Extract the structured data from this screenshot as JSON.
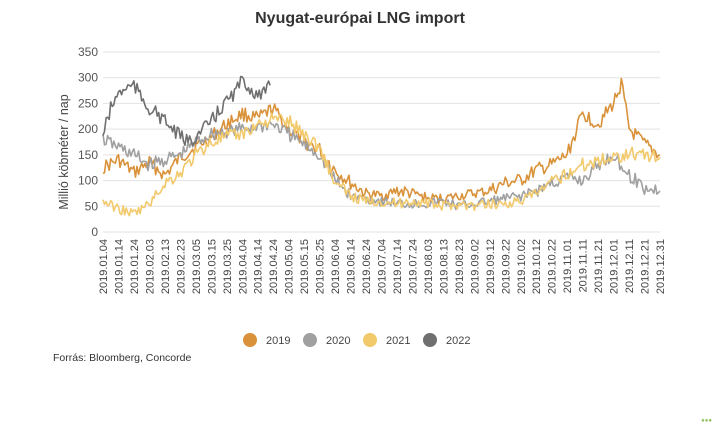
{
  "chart_data": {
    "type": "line",
    "title": "Nyugat-európai LNG import",
    "ylabel": "Millió köbméter / nap",
    "xlabel": "",
    "ylim": [
      0,
      350
    ],
    "yticks": [
      0,
      50,
      100,
      150,
      200,
      250,
      300,
      350
    ],
    "x_tick_labels": [
      "2019.01.04",
      "2019.01.14",
      "2019.01.24",
      "2019.02.03",
      "2019.02.13",
      "2019.02.23",
      "2019.03.05",
      "2019.03.15",
      "2019.03.25",
      "2019.04.04",
      "2019.04.14",
      "2019.04.24",
      "2019.05.04",
      "2019.05.15",
      "2019.05.25",
      "2019.06.04",
      "2019.06.14",
      "2019.06.24",
      "2019.07.04",
      "2019.07.14",
      "2019.07.24",
      "2019.08.03",
      "2019.08.13",
      "2019.08.23",
      "2019.09.02",
      "2019.09.12",
      "2019.09.22",
      "2019.10.02",
      "2019.10.12",
      "2019.10.22",
      "2019.11.01",
      "2019.11.11",
      "2019.11.21",
      "2019.12.01",
      "2019.12.11",
      "2019.12.21",
      "2019.12.31"
    ],
    "grid": "horizontal",
    "legend_position": "bottom",
    "series": [
      {
        "name": "2019",
        "color": "#D9923A",
        "x": [
          "2019.01.04",
          "2019.01.14",
          "2019.01.24",
          "2019.02.03",
          "2019.02.13",
          "2019.02.23",
          "2019.03.05",
          "2019.03.15",
          "2019.03.25",
          "2019.04.04",
          "2019.04.14",
          "2019.04.24",
          "2019.05.04",
          "2019.05.15",
          "2019.05.25",
          "2019.06.04",
          "2019.06.14",
          "2019.06.24",
          "2019.07.04",
          "2019.07.14",
          "2019.07.24",
          "2019.08.03",
          "2019.08.13",
          "2019.08.23",
          "2019.09.02",
          "2019.09.12",
          "2019.09.22",
          "2019.10.02",
          "2019.10.12",
          "2019.10.22",
          "2019.11.01",
          "2019.11.11",
          "2019.11.21",
          "2019.12.01",
          "2019.12.06",
          "2019.12.11",
          "2019.12.21",
          "2019.12.31"
        ],
        "values": [
          125,
          140,
          115,
          135,
          110,
          145,
          165,
          185,
          210,
          230,
          220,
          240,
          200,
          175,
          160,
          120,
          95,
          75,
          70,
          80,
          75,
          65,
          65,
          70,
          75,
          80,
          95,
          100,
          120,
          130,
          150,
          230,
          210,
          250,
          290,
          200,
          170,
          150
        ]
      },
      {
        "name": "2020",
        "color": "#A0A0A0",
        "x": [
          "2019.01.04",
          "2019.01.14",
          "2019.01.24",
          "2019.02.03",
          "2019.02.13",
          "2019.02.23",
          "2019.03.05",
          "2019.03.15",
          "2019.03.25",
          "2019.04.04",
          "2019.04.14",
          "2019.04.24",
          "2019.05.04",
          "2019.05.15",
          "2019.05.25",
          "2019.06.04",
          "2019.06.14",
          "2019.06.24",
          "2019.07.04",
          "2019.07.14",
          "2019.07.24",
          "2019.08.03",
          "2019.08.13",
          "2019.08.23",
          "2019.09.02",
          "2019.09.12",
          "2019.09.22",
          "2019.10.02",
          "2019.10.12",
          "2019.10.22",
          "2019.11.01",
          "2019.11.11",
          "2019.11.21",
          "2019.12.01",
          "2019.12.11",
          "2019.12.21",
          "2019.12.31"
        ],
        "values": [
          180,
          165,
          150,
          130,
          140,
          150,
          175,
          190,
          195,
          200,
          205,
          210,
          190,
          170,
          150,
          100,
          70,
          65,
          60,
          55,
          55,
          55,
          60,
          50,
          55,
          60,
          65,
          70,
          80,
          95,
          105,
          100,
          130,
          150,
          110,
          85,
          80
        ]
      },
      {
        "name": "2021",
        "color": "#F2C96B",
        "x": [
          "2019.01.04",
          "2019.01.14",
          "2019.01.24",
          "2019.02.03",
          "2019.02.13",
          "2019.02.23",
          "2019.03.05",
          "2019.03.15",
          "2019.03.25",
          "2019.04.04",
          "2019.04.14",
          "2019.04.24",
          "2019.05.04",
          "2019.05.15",
          "2019.05.25",
          "2019.06.04",
          "2019.06.14",
          "2019.06.24",
          "2019.07.04",
          "2019.07.14",
          "2019.07.24",
          "2019.08.03",
          "2019.08.13",
          "2019.08.23",
          "2019.09.02",
          "2019.09.12",
          "2019.09.22",
          "2019.10.02",
          "2019.10.12",
          "2019.10.22",
          "2019.11.01",
          "2019.11.11",
          "2019.11.21",
          "2019.12.01",
          "2019.12.11",
          "2019.12.21",
          "2019.12.31"
        ],
        "values": [
          60,
          45,
          35,
          55,
          95,
          115,
          150,
          175,
          185,
          190,
          210,
          220,
          215,
          190,
          165,
          95,
          70,
          60,
          60,
          55,
          60,
          55,
          50,
          55,
          50,
          55,
          55,
          60,
          75,
          95,
          115,
          130,
          140,
          145,
          155,
          150,
          145
        ]
      },
      {
        "name": "2022",
        "color": "#6F6F6F",
        "x": [
          "2019.01.04",
          "2019.01.09",
          "2019.01.14",
          "2019.01.19",
          "2019.01.24",
          "2019.01.29",
          "2019.02.03",
          "2019.02.08",
          "2019.02.13",
          "2019.02.18",
          "2019.02.23",
          "2019.02.28",
          "2019.03.05",
          "2019.03.10",
          "2019.03.15",
          "2019.03.20",
          "2019.03.25",
          "2019.03.30",
          "2019.04.04",
          "2019.04.09",
          "2019.04.14",
          "2019.04.19",
          "2019.04.22"
        ],
        "values": [
          190,
          240,
          270,
          280,
          285,
          260,
          240,
          230,
          215,
          200,
          185,
          175,
          185,
          200,
          215,
          235,
          255,
          270,
          295,
          280,
          265,
          270,
          285
        ]
      }
    ]
  },
  "source": "Forrás: Bloomberg, Concorde"
}
